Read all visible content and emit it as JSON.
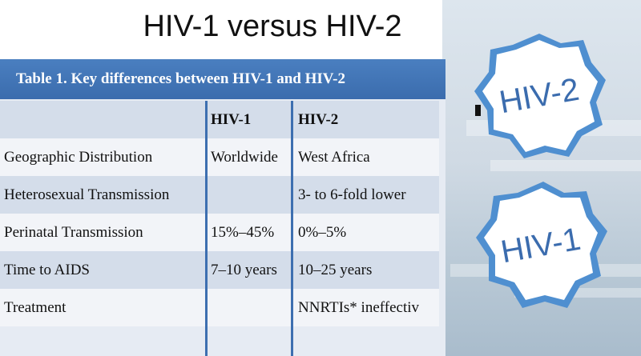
{
  "slide": {
    "title": "HIV-1 versus HIV-2"
  },
  "table": {
    "caption": "Table 1. Key differences between HIV-1 and HIV-2",
    "headers": [
      "",
      "HIV-1",
      "HIV-2"
    ],
    "rows": [
      [
        "Geographic Distribution",
        "Worldwide",
        "West Africa"
      ],
      [
        "Heterosexual Transmission",
        "",
        "3- to 6-fold lower"
      ],
      [
        "Perinatal Transmission",
        "15%–45%",
        "0%–5%"
      ],
      [
        "Time to AIDS",
        "7–10 years",
        "10–25 years"
      ],
      [
        "Treatment",
        "",
        "NNRTIs* ineffectiv"
      ]
    ]
  },
  "badges": {
    "top_label": "HIV-2",
    "bottom_label": "HIV-1"
  },
  "colors": {
    "accent_blue": "#3b6cad",
    "badge_outline": "#4f8fd0"
  }
}
